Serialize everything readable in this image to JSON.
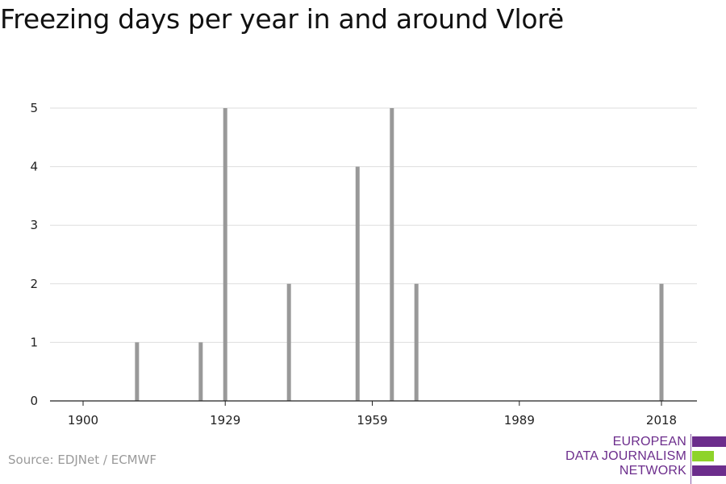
{
  "title": "Freezing days per year in and around Vlorë",
  "source": "Source: EDJNet / ECMWF",
  "logo": {
    "line1": "EUROPEAN",
    "line2": "DATA JOURNALISM",
    "line3": "NETWORK",
    "colors": {
      "text": "#6c2d8c",
      "bar_purple": "#6c2d8c",
      "bar_green": "#8ed32a"
    }
  },
  "chart_data": {
    "type": "bar",
    "title": "Freezing days per year in and around Vlorë",
    "xlabel": "",
    "ylabel": "",
    "x": [
      1911,
      1924,
      1929,
      1942,
      1956,
      1963,
      1968,
      2018
    ],
    "values": [
      1,
      1,
      5,
      2,
      4,
      5,
      2,
      2
    ],
    "xlim": [
      1900,
      2018
    ],
    "ylim": [
      0,
      5
    ],
    "xticks": [
      1900,
      1929,
      1959,
      1989,
      2018
    ],
    "yticks": [
      0,
      1,
      2,
      3,
      4,
      5
    ],
    "grid": true,
    "bar_color": "#999999"
  }
}
